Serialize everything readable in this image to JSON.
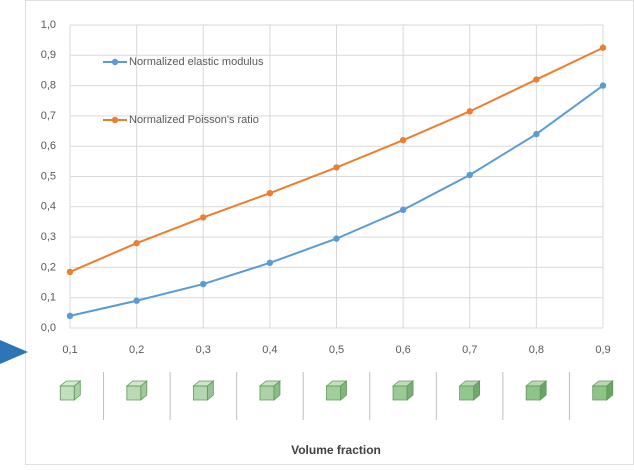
{
  "chart_data": {
    "type": "line",
    "x_label": "Volume fraction",
    "x": [
      0.1,
      0.2,
      0.3,
      0.4,
      0.5,
      0.6,
      0.7,
      0.8,
      0.9
    ],
    "series": [
      {
        "name": "Normalized elastic modulus",
        "color": "#5b9bd5",
        "values": [
          0.04,
          0.09,
          0.145,
          0.215,
          0.295,
          0.39,
          0.505,
          0.64,
          0.8
        ]
      },
      {
        "name": "Normalized Poisson's ratio",
        "color": "#ed7d31",
        "values": [
          0.185,
          0.28,
          0.365,
          0.445,
          0.53,
          0.62,
          0.715,
          0.82,
          0.925
        ]
      }
    ],
    "xlim": [
      0.1,
      0.9
    ],
    "xticks": [
      {
        "value": 0.1,
        "label": "0,1"
      },
      {
        "value": 0.2,
        "label": "0,2"
      },
      {
        "value": 0.3,
        "label": "0,3"
      },
      {
        "value": 0.4,
        "label": "0,4"
      },
      {
        "value": 0.5,
        "label": "0,5"
      },
      {
        "value": 0.6,
        "label": "0,6"
      },
      {
        "value": 0.7,
        "label": "0,7"
      },
      {
        "value": 0.8,
        "label": "0,8"
      },
      {
        "value": 0.9,
        "label": "0,9"
      }
    ],
    "ylim": [
      0,
      1
    ],
    "yticks": [
      {
        "value": 0,
        "label": "0,0"
      },
      {
        "value": 0.1,
        "label": "0,1"
      },
      {
        "value": 0.2,
        "label": "0,2"
      },
      {
        "value": 0.3,
        "label": "0,3"
      },
      {
        "value": 0.4,
        "label": "0,4"
      },
      {
        "value": 0.5,
        "label": "0,5"
      },
      {
        "value": 0.6,
        "label": "0,6"
      },
      {
        "value": 0.7,
        "label": "0,7"
      },
      {
        "value": 0.8,
        "label": "0,8"
      },
      {
        "value": 0.9,
        "label": "0,9"
      },
      {
        "value": 1,
        "label": "1,0"
      }
    ],
    "grid": true
  }
}
